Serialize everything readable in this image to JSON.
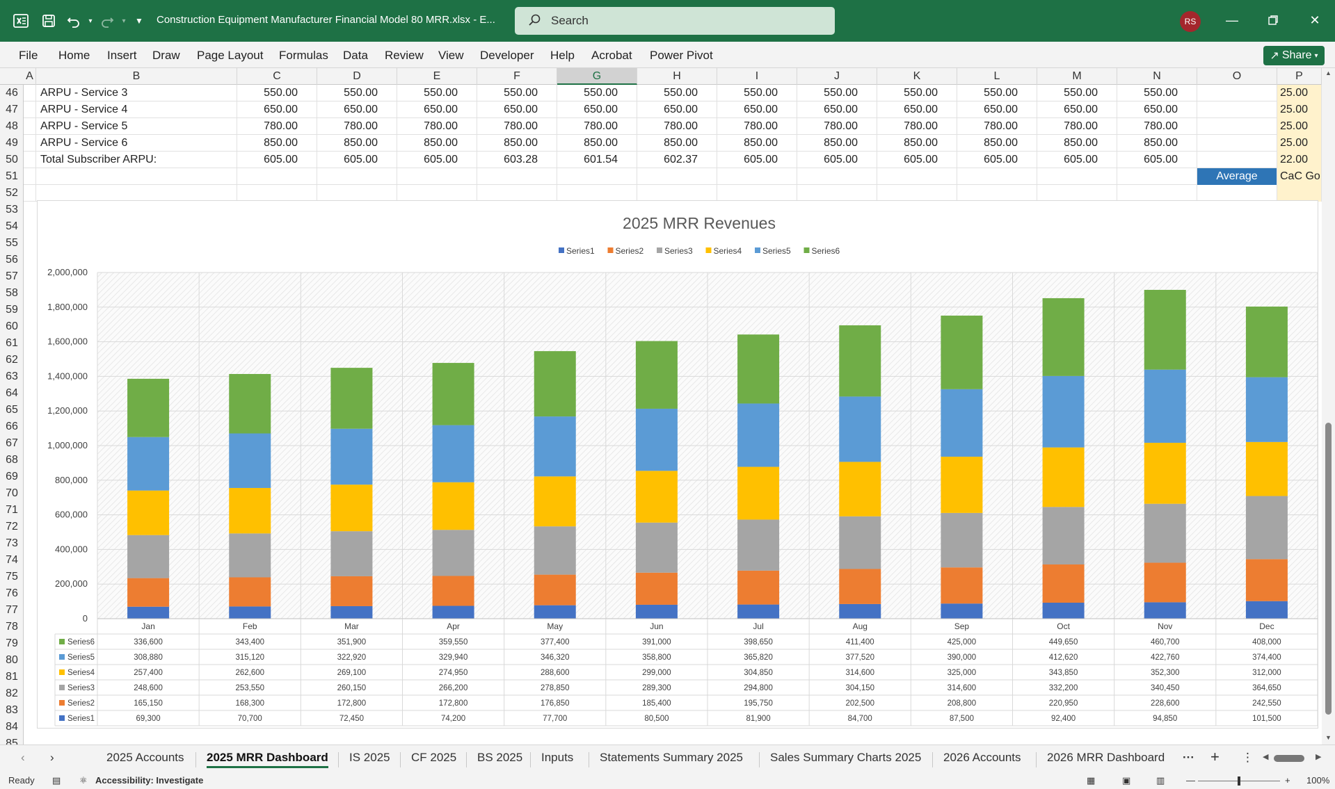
{
  "window": {
    "title": "Construction Equipment Manufacturer Financial Model 80 MRR.xlsx  -  E...",
    "search_placeholder": "Search",
    "avatar": "RS"
  },
  "ribbon": {
    "tabs": [
      "File",
      "Home",
      "Insert",
      "Draw",
      "Page Layout",
      "Formulas",
      "Data",
      "Review",
      "View",
      "Developer",
      "Help",
      "Acrobat",
      "Power Pivot"
    ],
    "share": "Share"
  },
  "columns": [
    "A",
    "B",
    "C",
    "D",
    "E",
    "F",
    "G",
    "H",
    "I",
    "J",
    "K",
    "L",
    "M",
    "N",
    "O",
    "P"
  ],
  "selected_column": "G",
  "row_numbers": [
    "46",
    "47",
    "48",
    "49",
    "50",
    "51",
    "52",
    "53",
    "54",
    "55",
    "56",
    "57",
    "58",
    "59",
    "60",
    "61",
    "62",
    "63",
    "64",
    "65",
    "66",
    "67",
    "68",
    "69",
    "70",
    "71",
    "72",
    "73",
    "74",
    "75",
    "76",
    "77",
    "78",
    "79",
    "80",
    "81",
    "82",
    "83",
    "84",
    "85"
  ],
  "rows": [
    {
      "label": "ARPU - Service 3",
      "values": [
        "550.00",
        "550.00",
        "550.00",
        "550.00",
        "550.00",
        "550.00",
        "550.00",
        "550.00",
        "550.00",
        "550.00",
        "550.00",
        "550.00"
      ],
      "p": "25.00"
    },
    {
      "label": "ARPU - Service 4",
      "values": [
        "650.00",
        "650.00",
        "650.00",
        "650.00",
        "650.00",
        "650.00",
        "650.00",
        "650.00",
        "650.00",
        "650.00",
        "650.00",
        "650.00"
      ],
      "p": "25.00"
    },
    {
      "label": "ARPU - Service 5",
      "values": [
        "780.00",
        "780.00",
        "780.00",
        "780.00",
        "780.00",
        "780.00",
        "780.00",
        "780.00",
        "780.00",
        "780.00",
        "780.00",
        "780.00"
      ],
      "p": "25.00"
    },
    {
      "label": "ARPU - Service 6",
      "values": [
        "850.00",
        "850.00",
        "850.00",
        "850.00",
        "850.00",
        "850.00",
        "850.00",
        "850.00",
        "850.00",
        "850.00",
        "850.00",
        "850.00"
      ],
      "p": "25.00"
    },
    {
      "label": "Total Subscriber ARPU:",
      "values": [
        "605.00",
        "605.00",
        "605.00",
        "603.28",
        "601.54",
        "602.37",
        "605.00",
        "605.00",
        "605.00",
        "605.00",
        "605.00",
        "605.00"
      ],
      "p": "22.00"
    }
  ],
  "row51": {
    "average": "Average",
    "p": "CaC Go"
  },
  "chart_data": {
    "type": "bar",
    "stacked": true,
    "title": "2025 MRR Revenues",
    "categories": [
      "Jan",
      "Feb",
      "Mar",
      "Apr",
      "May",
      "Jun",
      "Jul",
      "Aug",
      "Sep",
      "Oct",
      "Nov",
      "Dec"
    ],
    "ylim": [
      0,
      2000000
    ],
    "yticks": [
      "0",
      "200,000",
      "400,000",
      "600,000",
      "800,000",
      "1,000,000",
      "1,200,000",
      "1,400,000",
      "1,600,000",
      "1,800,000",
      "2,000,000"
    ],
    "legend_position": "top",
    "series": [
      {
        "name": "Series1",
        "color": "#4472c4",
        "values": [
          69300,
          70700,
          72450,
          74200,
          77700,
          80500,
          81900,
          84700,
          87500,
          92400,
          94850,
          101500
        ],
        "labels": [
          "69,300",
          "70,700",
          "72,450",
          "74,200",
          "77,700",
          "80,500",
          "81,900",
          "84,700",
          "87,500",
          "92,400",
          "94,850",
          "101,500"
        ]
      },
      {
        "name": "Series2",
        "color": "#ed7d31",
        "values": [
          165150,
          168300,
          172800,
          172800,
          176850,
          185400,
          195750,
          202500,
          208800,
          220950,
          228600,
          242550
        ],
        "labels": [
          "165,150",
          "168,300",
          "172,800",
          "172,800",
          "176,850",
          "185,400",
          "195,750",
          "202,500",
          "208,800",
          "220,950",
          "228,600",
          "242,550"
        ]
      },
      {
        "name": "Series3",
        "color": "#a5a5a5",
        "values": [
          248600,
          253550,
          260150,
          266200,
          278850,
          289300,
          294800,
          304150,
          314600,
          332200,
          340450,
          364650
        ],
        "labels": [
          "248,600",
          "253,550",
          "260,150",
          "266,200",
          "278,850",
          "289,300",
          "294,800",
          "304,150",
          "314,600",
          "332,200",
          "340,450",
          "364,650"
        ]
      },
      {
        "name": "Series4",
        "color": "#ffc000",
        "values": [
          257400,
          262600,
          269100,
          274950,
          288600,
          299000,
          304850,
          314600,
          325000,
          343850,
          352300,
          312000
        ],
        "labels": [
          "257,400",
          "262,600",
          "269,100",
          "274,950",
          "288,600",
          "299,000",
          "304,850",
          "314,600",
          "325,000",
          "343,850",
          "352,300",
          "312,000"
        ]
      },
      {
        "name": "Series5",
        "color": "#5b9bd5",
        "values": [
          308880,
          315120,
          322920,
          329940,
          346320,
          358800,
          365820,
          377520,
          390000,
          412620,
          422760,
          374400
        ],
        "labels": [
          "308,880",
          "315,120",
          "322,920",
          "329,940",
          "346,320",
          "358,800",
          "365,820",
          "377,520",
          "390,000",
          "412,620",
          "422,760",
          "374,400"
        ]
      },
      {
        "name": "Series6",
        "color": "#70ad47",
        "values": [
          336600,
          343400,
          351900,
          359550,
          377400,
          391000,
          398650,
          411400,
          425000,
          449650,
          460700,
          408000
        ],
        "labels": [
          "336,600",
          "343,400",
          "351,900",
          "359,550",
          "377,400",
          "391,000",
          "398,650",
          "411,400",
          "425,000",
          "449,650",
          "460,700",
          "408,000"
        ]
      }
    ]
  },
  "sheet_tabs": [
    "2025 Accounts",
    "2025 MRR Dashboard",
    "IS 2025",
    "CF 2025",
    "BS 2025",
    "Inputs",
    "Statements Summary 2025",
    "Sales Summary Charts 2025",
    "2026 Accounts",
    "2026 MRR Dashboard"
  ],
  "active_sheet": "2025 MRR Dashboard",
  "status": {
    "ready": "Ready",
    "accessibility": "Accessibility: Investigate",
    "zoom": "100%"
  }
}
